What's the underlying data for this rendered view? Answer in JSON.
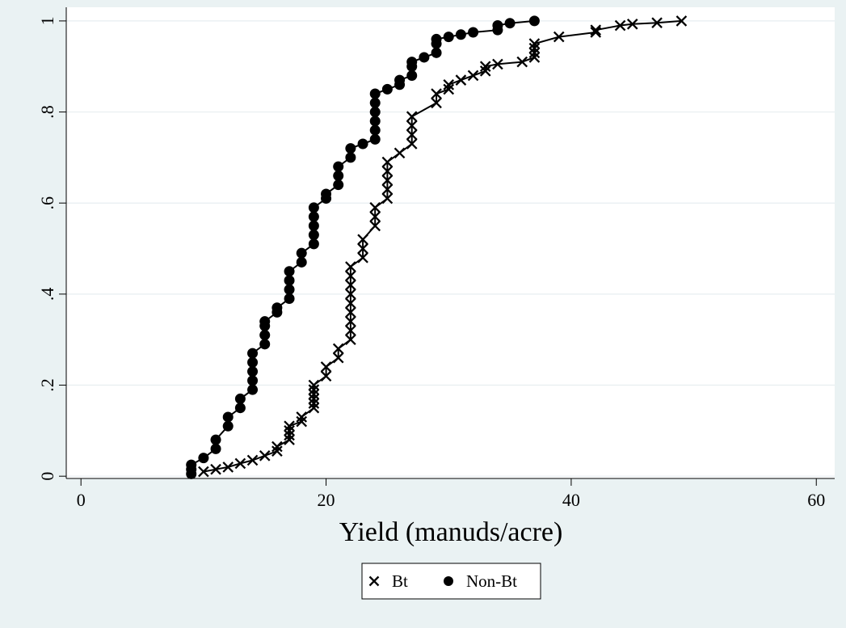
{
  "colors": {
    "background": "#eaf2f3",
    "plot_background": "#ffffff",
    "gridline": "#e7eef0",
    "series": "#000000"
  },
  "chart_data": {
    "type": "line",
    "title": "",
    "xlabel": "Yield (manuds/acre)",
    "ylabel": "",
    "xlim": [
      -1.2,
      61.5
    ],
    "ylim": [
      -0.005,
      1.03
    ],
    "x_ticks": [
      0,
      20,
      40,
      60
    ],
    "x_tick_labels": [
      "0",
      "20",
      "40",
      "60"
    ],
    "y_ticks": [
      0,
      0.2,
      0.4,
      0.6,
      0.8,
      1
    ],
    "y_tick_labels": [
      "0",
      ".2",
      ".4",
      ".6",
      ".8",
      "1"
    ],
    "grid": true,
    "legend_position": "bottom-center",
    "series": [
      {
        "name": "Bt",
        "marker": "x",
        "points": [
          [
            10,
            0.01
          ],
          [
            11,
            0.015
          ],
          [
            12,
            0.02
          ],
          [
            13,
            0.028
          ],
          [
            14,
            0.035
          ],
          [
            15,
            0.045
          ],
          [
            16,
            0.055
          ],
          [
            16,
            0.065
          ],
          [
            17,
            0.08
          ],
          [
            17,
            0.09
          ],
          [
            17,
            0.1
          ],
          [
            17,
            0.11
          ],
          [
            18,
            0.12
          ],
          [
            18,
            0.13
          ],
          [
            19,
            0.15
          ],
          [
            19,
            0.16
          ],
          [
            19,
            0.17
          ],
          [
            19,
            0.18
          ],
          [
            19,
            0.19
          ],
          [
            19,
            0.2
          ],
          [
            20,
            0.22
          ],
          [
            20,
            0.24
          ],
          [
            21,
            0.26
          ],
          [
            21,
            0.28
          ],
          [
            22,
            0.3
          ],
          [
            22,
            0.32
          ],
          [
            22,
            0.34
          ],
          [
            22,
            0.36
          ],
          [
            22,
            0.38
          ],
          [
            22,
            0.4
          ],
          [
            22,
            0.42
          ],
          [
            22,
            0.44
          ],
          [
            22,
            0.46
          ],
          [
            23,
            0.48
          ],
          [
            23,
            0.5
          ],
          [
            23,
            0.52
          ],
          [
            24,
            0.55
          ],
          [
            24,
            0.57
          ],
          [
            24,
            0.59
          ],
          [
            25,
            0.61
          ],
          [
            25,
            0.63
          ],
          [
            25,
            0.65
          ],
          [
            25,
            0.67
          ],
          [
            25,
            0.69
          ],
          [
            26,
            0.71
          ],
          [
            27,
            0.73
          ],
          [
            27,
            0.75
          ],
          [
            27,
            0.77
          ],
          [
            27,
            0.79
          ],
          [
            29,
            0.82
          ],
          [
            29,
            0.84
          ],
          [
            30,
            0.85
          ],
          [
            30,
            0.86
          ],
          [
            31,
            0.87
          ],
          [
            32,
            0.88
          ],
          [
            33,
            0.89
          ],
          [
            33,
            0.9
          ],
          [
            34,
            0.905
          ],
          [
            36,
            0.91
          ],
          [
            37,
            0.92
          ],
          [
            37,
            0.93
          ],
          [
            37,
            0.94
          ],
          [
            37,
            0.95
          ],
          [
            39,
            0.965
          ],
          [
            42,
            0.975
          ],
          [
            42,
            0.98
          ],
          [
            44,
            0.99
          ],
          [
            45,
            0.993
          ],
          [
            47,
            0.996
          ],
          [
            49,
            1.0
          ]
        ]
      },
      {
        "name": "Non-Bt",
        "marker": "circle",
        "points": [
          [
            9,
            0.005
          ],
          [
            9,
            0.015
          ],
          [
            9,
            0.025
          ],
          [
            10,
            0.04
          ],
          [
            11,
            0.06
          ],
          [
            11,
            0.08
          ],
          [
            12,
            0.11
          ],
          [
            12,
            0.13
          ],
          [
            13,
            0.15
          ],
          [
            13,
            0.17
          ],
          [
            14,
            0.19
          ],
          [
            14,
            0.21
          ],
          [
            14,
            0.23
          ],
          [
            14,
            0.25
          ],
          [
            14,
            0.27
          ],
          [
            15,
            0.29
          ],
          [
            15,
            0.31
          ],
          [
            15,
            0.33
          ],
          [
            15,
            0.34
          ],
          [
            16,
            0.36
          ],
          [
            16,
            0.37
          ],
          [
            17,
            0.39
          ],
          [
            17,
            0.41
          ],
          [
            17,
            0.43
          ],
          [
            17,
            0.45
          ],
          [
            18,
            0.47
          ],
          [
            18,
            0.49
          ],
          [
            19,
            0.51
          ],
          [
            19,
            0.53
          ],
          [
            19,
            0.55
          ],
          [
            19,
            0.57
          ],
          [
            19,
            0.59
          ],
          [
            20,
            0.61
          ],
          [
            20,
            0.62
          ],
          [
            21,
            0.64
          ],
          [
            21,
            0.66
          ],
          [
            21,
            0.68
          ],
          [
            22,
            0.7
          ],
          [
            22,
            0.72
          ],
          [
            23,
            0.73
          ],
          [
            24,
            0.74
          ],
          [
            24,
            0.76
          ],
          [
            24,
            0.78
          ],
          [
            24,
            0.8
          ],
          [
            24,
            0.82
          ],
          [
            24,
            0.84
          ],
          [
            25,
            0.85
          ],
          [
            26,
            0.86
          ],
          [
            26,
            0.87
          ],
          [
            27,
            0.88
          ],
          [
            27,
            0.9
          ],
          [
            27,
            0.91
          ],
          [
            28,
            0.92
          ],
          [
            29,
            0.93
          ],
          [
            29,
            0.95
          ],
          [
            29,
            0.96
          ],
          [
            30,
            0.965
          ],
          [
            31,
            0.97
          ],
          [
            32,
            0.975
          ],
          [
            34,
            0.98
          ],
          [
            34,
            0.99
          ],
          [
            35,
            0.995
          ],
          [
            37,
            1.0
          ]
        ]
      }
    ]
  }
}
